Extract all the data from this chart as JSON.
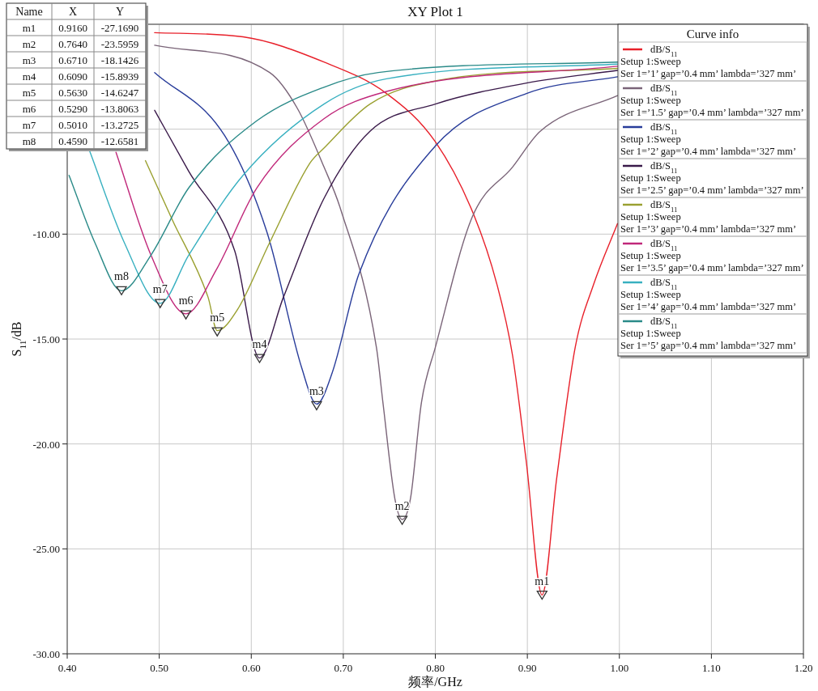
{
  "chart_data": {
    "type": "line",
    "title": "XY Plot 1",
    "xlabel": "频率/GHz",
    "ylabel": "S$_{11}$/dB",
    "legend_title": "Curve info",
    "legend": "top right",
    "grid": true,
    "xlim": [
      0.4,
      1.2
    ],
    "ylim": [
      -30,
      0
    ],
    "xticks": [
      {
        "value": 0.4,
        "label": "0.40"
      },
      {
        "value": 0.5,
        "label": "0.50"
      },
      {
        "value": 0.6,
        "label": "0.60"
      },
      {
        "value": 0.7,
        "label": "0.70"
      },
      {
        "value": 0.8,
        "label": "0.80"
      },
      {
        "value": 0.9,
        "label": "0.90"
      },
      {
        "value": 1.0,
        "label": "1.00"
      },
      {
        "value": 1.1,
        "label": "1.10"
      },
      {
        "value": 1.2,
        "label": "1.20"
      }
    ],
    "yticks": [
      {
        "value": -30,
        "label": "-30.00"
      },
      {
        "value": -25,
        "label": "-25.00"
      },
      {
        "value": -20,
        "label": "-20.00"
      },
      {
        "value": -15,
        "label": "-15.00"
      },
      {
        "value": -10,
        "label": "-10.00"
      },
      {
        "value": -5,
        "label": null
      },
      {
        "value": 0,
        "label": null
      }
    ],
    "series": [
      {
        "name": "dB/S$_{11}$\nSetup 1:Sweep\nSer 1=’1’ gap=’0.4 mm’ lambda=’327 mm’",
        "color": "#e8202a",
        "x": [
          0.495,
          0.591,
          0.679,
          0.747,
          0.8,
          0.842,
          0.867,
          0.884,
          0.899,
          0.916,
          0.932,
          0.952,
          0.972,
          0.998
        ],
        "values": [
          -0.4,
          -0.6,
          -1.8,
          -3.3,
          -5.6,
          -9.1,
          -12.4,
          -15.8,
          -20.9,
          -27.2,
          -21.6,
          -15.4,
          -12.4,
          -9.5
        ]
      },
      {
        "name": "dB/S$_{11}$\nSetup 1:Sweep\nSer 1=’1.5’ gap=’0.4 mm’ lambda=’327 mm’",
        "color": "#7a6478",
        "x": [
          0.495,
          0.62,
          0.65,
          0.679,
          0.697,
          0.736,
          0.743,
          0.756,
          0.764,
          0.773,
          0.785,
          0.8,
          0.84,
          0.884,
          0.914,
          0.998
        ],
        "values": [
          -1.0,
          -2.3,
          -4.0,
          -6.8,
          -8.8,
          -15.4,
          -18.0,
          -22.6,
          -23.6,
          -22.6,
          -18.0,
          -15.4,
          -9.2,
          -6.8,
          -5.1,
          -3.4
        ]
      },
      {
        "name": "dB/S$_{11}$\nSetup 1:Sweep\nSer 1=’2’ gap=’0.4 mm’ lambda=’327 mm’",
        "color": "#283c9a",
        "x": [
          0.495,
          0.571,
          0.617,
          0.655,
          0.671,
          0.688,
          0.717,
          0.8,
          0.899,
          0.998
        ],
        "values": [
          -2.3,
          -5.3,
          -9.9,
          -16.4,
          -18.1,
          -16.6,
          -11.9,
          -5.8,
          -3.3,
          -2.5
        ]
      },
      {
        "name": "dB/S$_{11}$\nSetup 1:Sweep\nSer 1=’2.5’ gap=’0.4 mm’ lambda=’327 mm’",
        "color": "#3a1a4a",
        "x": [
          0.495,
          0.532,
          0.582,
          0.609,
          0.635,
          0.679,
          0.729,
          0.8,
          0.899,
          0.998
        ],
        "values": [
          -4.1,
          -7.0,
          -10.8,
          -15.9,
          -13.0,
          -8.3,
          -5.1,
          -3.8,
          -2.8,
          -2.2
        ]
      },
      {
        "name": "dB/S$_{11}$\nSetup 1:Sweep\nSer 1=’3’ gap=’0.4 mm’ lambda=’327 mm’",
        "color": "#9aa030",
        "x": [
          0.485,
          0.514,
          0.553,
          0.563,
          0.585,
          0.62,
          0.664,
          0.679,
          0.729,
          0.8,
          0.998
        ],
        "values": [
          -6.5,
          -9.3,
          -13.0,
          -14.6,
          -13.6,
          -10.4,
          -6.6,
          -5.9,
          -3.8,
          -2.7,
          -2.1
        ]
      },
      {
        "name": "dB/S$_{11}$\nSetup 1:Sweep\nSer 1=’3.5’ gap=’0.4 mm’ lambda=’327 mm’",
        "color": "#c0287a",
        "x": [
          0.453,
          0.491,
          0.529,
          0.562,
          0.606,
          0.679,
          0.747,
          0.998
        ],
        "values": [
          -6.1,
          -11.0,
          -13.8,
          -11.7,
          -7.8,
          -4.5,
          -3.2,
          -2.0
        ]
      },
      {
        "name": "dB/S$_{11}$\nSetup 1:Sweep\nSer 1=’4’ gap=’0.4 mm’ lambda=’327 mm’",
        "color": "#38b0c0",
        "x": [
          0.424,
          0.462,
          0.501,
          0.532,
          0.591,
          0.679,
          0.747,
          0.998
        ],
        "values": [
          -6.0,
          -10.4,
          -13.3,
          -11.0,
          -7.2,
          -3.8,
          -2.6,
          -1.9
        ]
      },
      {
        "name": "dB/S$_{11}$\nSetup 1:Sweep\nSer 1=’5’ gap=’0.4 mm’ lambda=’327 mm’",
        "color": "#2a8a88",
        "x": [
          0.402,
          0.43,
          0.459,
          0.491,
          0.532,
          0.606,
          0.679,
          0.738,
          0.998
        ],
        "values": [
          -7.2,
          -10.4,
          -12.7,
          -11.0,
          -7.8,
          -4.6,
          -3.0,
          -2.3,
          -1.8
        ]
      },
      {
        "type": "scatter",
        "marker": "triangle",
        "color": "#333333",
        "x": [
          0.916,
          0.764,
          0.671,
          0.609,
          0.563,
          0.529,
          0.501,
          0.459
        ],
        "values": [
          -27.17,
          -23.6,
          -18.14,
          -15.89,
          -14.62,
          -13.81,
          -13.27,
          -12.66
        ]
      }
    ],
    "annotations": [
      "Name",
      "X",
      "Y",
      "m1",
      "0.9160",
      "-27.1690",
      "m2",
      "0.7640",
      "-23.5959",
      "m3",
      "0.6710",
      "-18.1426",
      "m4",
      "0.6090",
      "-15.8939",
      "m5",
      "0.5630",
      "-14.6247",
      "m6",
      "0.5290",
      "-13.8063",
      "m7",
      "0.5010",
      "-13.2725",
      "m8",
      "0.4590",
      "-12.6581",
      {
        "text": "m1",
        "x": 0.916,
        "y": -27.169
      },
      {
        "text": "m2",
        "x": 0.764,
        "y": -23.5959
      },
      {
        "text": "m3",
        "x": 0.671,
        "y": -18.1426
      },
      {
        "text": "m4",
        "x": 0.609,
        "y": -15.8939
      },
      {
        "text": "m5",
        "x": 0.563,
        "y": -14.6247
      },
      {
        "text": "m6",
        "x": 0.529,
        "y": -13.8063
      },
      {
        "text": "m7",
        "x": 0.501,
        "y": -13.2725
      },
      {
        "text": "m8",
        "x": 0.459,
        "y": -12.6581
      }
    ]
  }
}
